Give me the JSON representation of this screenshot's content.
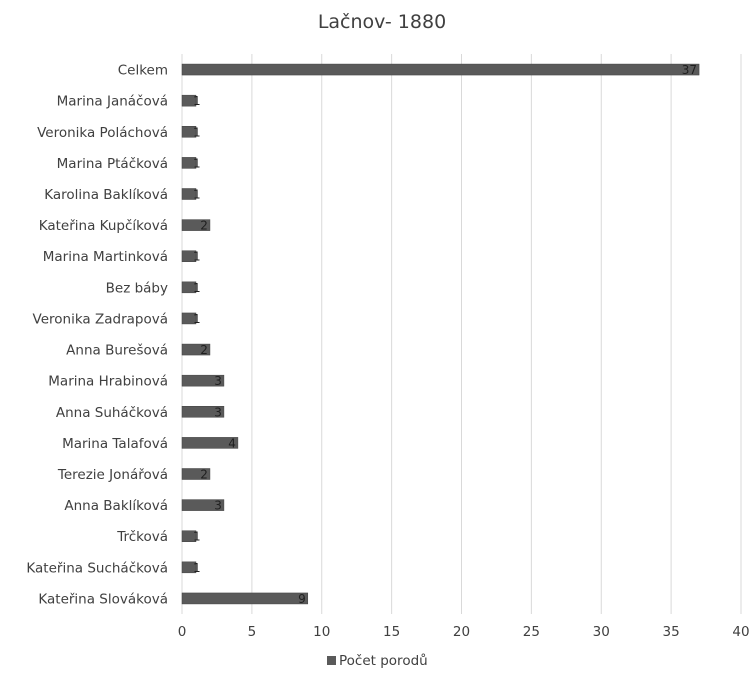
{
  "chart_data": {
    "type": "bar",
    "orientation": "horizontal",
    "title": "Lačnov- 1880",
    "categories": [
      "Celkem",
      "Marina Janáčová",
      "Veronika Poláchová",
      "Marina Ptáčková",
      "Karolina Baklíková",
      "Kateřina Kupčíková",
      "Marina Martinková",
      "Bez báby",
      "Veronika Zadrapová",
      "Anna Burešová",
      "Marina Hrabinová",
      "Anna Suháčková",
      "Marina Talafová",
      "Terezie Jonářová",
      "Anna Baklíková",
      "Trčková",
      "Kateřina Sucháčková",
      "Kateřina Slováková"
    ],
    "series": [
      {
        "name": "Počet porodů",
        "values": [
          37,
          1,
          1,
          1,
          1,
          2,
          1,
          1,
          1,
          2,
          3,
          3,
          4,
          2,
          3,
          1,
          1,
          9
        ],
        "data_labels": [
          "37",
          "1",
          "1",
          "1",
          "1",
          "2",
          "1",
          "1",
          "1",
          "2",
          "3",
          "3",
          "4",
          "2",
          "3",
          "1",
          "1",
          "9"
        ]
      }
    ],
    "xlim": [
      0,
      40
    ],
    "xticks": [
      "0",
      "5",
      "10",
      "15",
      "20",
      "25",
      "30",
      "35",
      "40"
    ],
    "grid": true,
    "legend": "bottom",
    "colors": {
      "bar": "#5a5a5a",
      "bar_edge": "#404040",
      "grid": "#d9d9d9",
      "text": "#404040"
    }
  }
}
